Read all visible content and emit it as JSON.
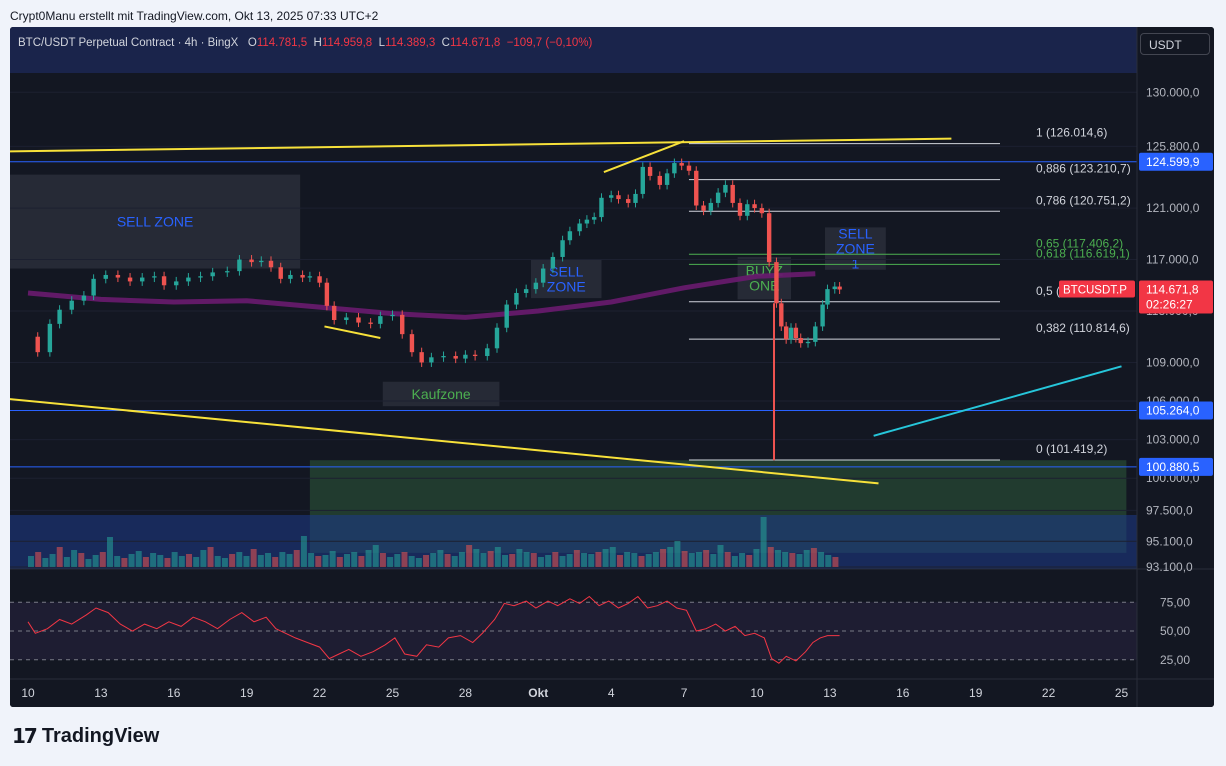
{
  "header": {
    "text": "Crypt0Manu erstellt mit TradingView.com, Okt 13, 2025 07:33 UTC+2"
  },
  "legend": {
    "symbol": "BTC/USDT Perpetual Contract · 4h · BingX",
    "o_label": "O",
    "o": "114.781,5",
    "h_label": "H",
    "h": "114.959,8",
    "l_label": "L",
    "l": "114.389,3",
    "c_label": "C",
    "c": "114.671,8",
    "change": "−109,7 (−0,10%)"
  },
  "currency_button": "USDT",
  "footer": {
    "brand": "TradingView",
    "mark": "17"
  },
  "colors": {
    "up": "#26a69a",
    "down": "#ef5350",
    "ma": "#6a1b6f",
    "fib": "#d1d4dc",
    "trend": "#f7e13a",
    "teal_line": "#26c6da",
    "hline": "#2962ff",
    "rsi": "#f23645"
  },
  "chart_data": {
    "type": "candlestick",
    "symbol": "BTCUSDT.P",
    "timeframe": "4h",
    "exchange": "BingX",
    "ylim": [
      93100,
      131500
    ],
    "y_ticks": [
      {
        "v": 130000,
        "label": "130.000,0"
      },
      {
        "v": 125800,
        "label": "125.800,0"
      },
      {
        "v": 121000,
        "label": "121.000,0"
      },
      {
        "v": 117000,
        "label": "117.000,0"
      },
      {
        "v": 113000,
        "label": "113.000,0"
      },
      {
        "v": 109000,
        "label": "109.000,0"
      },
      {
        "v": 106000,
        "label": "106.000,0"
      },
      {
        "v": 103000,
        "label": "103.000,0"
      },
      {
        "v": 100000,
        "label": "100.000,0"
      },
      {
        "v": 97500,
        "label": "97.500,0"
      },
      {
        "v": 95100,
        "label": "95.100,0"
      },
      {
        "v": 93100,
        "label": "93.100,0"
      }
    ],
    "x_ticks": [
      {
        "d": 0,
        "label": "10"
      },
      {
        "d": 3,
        "label": "13"
      },
      {
        "d": 6,
        "label": "16"
      },
      {
        "d": 9,
        "label": "19"
      },
      {
        "d": 12,
        "label": "22"
      },
      {
        "d": 15,
        "label": "25"
      },
      {
        "d": 18,
        "label": "28"
      },
      {
        "d": 21,
        "label": "Okt"
      },
      {
        "d": 24,
        "label": "4"
      },
      {
        "d": 27,
        "label": "7"
      },
      {
        "d": 30,
        "label": "10"
      },
      {
        "d": 33,
        "label": "13"
      },
      {
        "d": 36,
        "label": "16"
      },
      {
        "d": 39,
        "label": "19"
      },
      {
        "d": 42,
        "label": "22"
      },
      {
        "d": 45,
        "label": "25"
      }
    ],
    "close_points": [
      [
        0.0,
        111000
      ],
      [
        0.4,
        109800
      ],
      [
        0.9,
        112000
      ],
      [
        1.3,
        113100
      ],
      [
        1.8,
        113800
      ],
      [
        2.3,
        114200
      ],
      [
        2.7,
        115500
      ],
      [
        3.2,
        115800
      ],
      [
        3.7,
        115600
      ],
      [
        4.2,
        115300
      ],
      [
        4.7,
        115600
      ],
      [
        5.2,
        115700
      ],
      [
        5.6,
        115000
      ],
      [
        6.1,
        115300
      ],
      [
        6.6,
        115600
      ],
      [
        7.1,
        115700
      ],
      [
        7.6,
        116000
      ],
      [
        8.2,
        116100
      ],
      [
        8.7,
        117000
      ],
      [
        9.2,
        116800
      ],
      [
        9.6,
        116900
      ],
      [
        10.0,
        116400
      ],
      [
        10.4,
        115500
      ],
      [
        10.8,
        115800
      ],
      [
        11.3,
        115600
      ],
      [
        11.6,
        115700
      ],
      [
        12.0,
        115200
      ],
      [
        12.3,
        113400
      ],
      [
        12.6,
        112300
      ],
      [
        13.1,
        112500
      ],
      [
        13.6,
        112100
      ],
      [
        14.1,
        112000
      ],
      [
        14.5,
        112600
      ],
      [
        15.0,
        112700
      ],
      [
        15.4,
        111200
      ],
      [
        15.8,
        109800
      ],
      [
        16.2,
        109000
      ],
      [
        16.6,
        109400
      ],
      [
        17.1,
        109500
      ],
      [
        17.6,
        109300
      ],
      [
        18.0,
        109600
      ],
      [
        18.4,
        109500
      ],
      [
        18.9,
        110100
      ],
      [
        19.3,
        111700
      ],
      [
        19.7,
        113500
      ],
      [
        20.1,
        114400
      ],
      [
        20.5,
        114700
      ],
      [
        20.9,
        115200
      ],
      [
        21.2,
        116300
      ],
      [
        21.6,
        117200
      ],
      [
        22.0,
        118500
      ],
      [
        22.3,
        119200
      ],
      [
        22.7,
        119800
      ],
      [
        23.0,
        120100
      ],
      [
        23.3,
        120300
      ],
      [
        23.6,
        121800
      ],
      [
        24.0,
        122000
      ],
      [
        24.3,
        121700
      ],
      [
        24.7,
        121400
      ],
      [
        25.0,
        122100
      ],
      [
        25.3,
        124200
      ],
      [
        25.6,
        123500
      ],
      [
        26.0,
        122800
      ],
      [
        26.3,
        123700
      ],
      [
        26.6,
        124500
      ],
      [
        26.9,
        124300
      ],
      [
        27.2,
        123900
      ],
      [
        27.5,
        121200
      ],
      [
        27.8,
        120800
      ],
      [
        28.1,
        121400
      ],
      [
        28.4,
        122200
      ],
      [
        28.7,
        122800
      ],
      [
        29.0,
        121400
      ],
      [
        29.3,
        120400
      ],
      [
        29.6,
        121300
      ],
      [
        29.9,
        121000
      ],
      [
        30.2,
        120600
      ],
      [
        30.5,
        116800
      ],
      [
        30.8,
        113600
      ],
      [
        31.0,
        111800
      ],
      [
        31.2,
        110800
      ],
      [
        31.4,
        111700
      ],
      [
        31.6,
        110900
      ],
      [
        31.8,
        110500
      ],
      [
        32.1,
        110600
      ],
      [
        32.4,
        111800
      ],
      [
        32.7,
        113500
      ],
      [
        32.9,
        114700
      ],
      [
        33.2,
        114900
      ],
      [
        33.4,
        114672
      ]
    ],
    "wick": {
      "x": 30.7,
      "high": 113600,
      "low": 101400
    },
    "ma_points": [
      [
        0,
        114400
      ],
      [
        3,
        113900
      ],
      [
        6,
        113700
      ],
      [
        9,
        113800
      ],
      [
        12,
        113300
      ],
      [
        15,
        112800
      ],
      [
        18,
        112500
      ],
      [
        21,
        113000
      ],
      [
        24,
        113700
      ],
      [
        27,
        114800
      ],
      [
        30,
        115700
      ],
      [
        32.4,
        115900
      ]
    ],
    "fibonacci": {
      "x_start_day": 27.2,
      "x_end_day": 40.0,
      "levels": [
        {
          "ratio": "1",
          "price": 126014.6,
          "label": "1 (126.014,6)",
          "color": "#d1d4dc"
        },
        {
          "ratio": "0,886",
          "price": 123210.7,
          "label": "0,886 (123.210,7)",
          "color": "#d1d4dc"
        },
        {
          "ratio": "0,786",
          "price": 120751.2,
          "label": "0,786 (120.751,2)",
          "color": "#d1d4dc"
        },
        {
          "ratio": "0,65",
          "price": 117406.2,
          "label": "0,65 (117.406,2)",
          "color": "#4caf50"
        },
        {
          "ratio": "0,618",
          "price": 116619.1,
          "label": "0,618 (116.619,1)",
          "color": "#4caf50"
        },
        {
          "ratio": "0,5",
          "price": 113716.7,
          "label": "0,5 (113",
          "color": "#d1d4dc"
        },
        {
          "ratio": "0,382",
          "price": 110814.6,
          "label": "0,382 (110.814,6)",
          "color": "#d1d4dc"
        },
        {
          "ratio": "0",
          "price": 101419.2,
          "label": "0 (101.419,2)",
          "color": "#d1d4dc"
        }
      ]
    },
    "horizontal_lines": [
      {
        "price": 124599.9,
        "label": "124.599,9"
      },
      {
        "price": 105264.0,
        "label": "105.264,0"
      },
      {
        "price": 100880.5,
        "label": "100.880,5"
      }
    ],
    "price_tag": {
      "symbol": "BTCUSDT.P",
      "price": "114.671,8",
      "countdown": "02:26:27"
    },
    "zones": [
      {
        "label": "SELL ZONE",
        "color": "#2962ff",
        "x1": -1,
        "x2": 11.2,
        "y1": 123600,
        "y2": 116300
      },
      {
        "label": "SELL\nZONE",
        "color": "#2962ff",
        "x1": 20.7,
        "x2": 23.6,
        "y1": 117000,
        "y2": 114000
      },
      {
        "label": "SELL\nZONE\n1",
        "color": "#2962ff",
        "x1": 32.8,
        "x2": 35.3,
        "y1": 119500,
        "y2": 116200
      },
      {
        "label": "BUYZ\nONE",
        "color": "#4caf50",
        "x1": 29.2,
        "x2": 31.4,
        "y1": 117200,
        "y2": 113900
      },
      {
        "label": "Kaufzone",
        "color": "#4caf50",
        "x1": 14.6,
        "x2": 19.4,
        "y1": 107500,
        "y2": 105600
      }
    ],
    "demand_zone": {
      "x1": 11.6,
      "x2": 45.2,
      "y1": 101400,
      "y2": 94200
    },
    "trendlines": [
      {
        "color": "#f7e13a",
        "p1": [
          -1,
          125400
        ],
        "p2": [
          38.0,
          126400
        ]
      },
      {
        "color": "#f7e13a",
        "p1": [
          -1,
          106200
        ],
        "p2": [
          35.0,
          99600
        ]
      },
      {
        "color": "#f7e13a",
        "p1": [
          23.7,
          123800
        ],
        "p2": [
          27.0,
          126200
        ]
      },
      {
        "color": "#f7e13a",
        "p1": [
          12.2,
          111800
        ],
        "p2": [
          14.5,
          110900
        ]
      },
      {
        "color": "#26c6da",
        "p1": [
          34.8,
          103300
        ],
        "p2": [
          45.0,
          108700
        ]
      }
    ],
    "volume_max": 100,
    "volume": [
      22,
      30,
      18,
      26,
      40,
      20,
      34,
      28,
      16,
      24,
      30,
      60,
      22,
      18,
      26,
      32,
      20,
      28,
      24,
      18,
      30,
      22,
      26,
      20,
      34,
      40,
      22,
      18,
      26,
      30,
      22,
      36,
      24,
      28,
      20,
      30,
      26,
      34,
      62,
      28,
      22,
      24,
      32,
      20,
      26,
      30,
      22,
      34,
      44,
      28,
      20,
      26,
      30,
      22,
      18,
      24,
      28,
      34,
      26,
      22,
      30,
      44,
      36,
      28,
      32,
      40,
      24,
      26,
      36,
      30,
      28,
      20,
      24,
      30,
      22,
      26,
      34,
      28,
      26,
      30,
      36,
      40,
      24,
      30,
      28,
      22,
      26,
      30,
      36,
      40,
      52,
      32,
      28,
      30,
      34,
      26,
      44,
      30,
      22,
      28,
      24,
      36,
      100,
      40,
      34,
      30,
      28,
      26,
      34,
      38,
      30,
      24,
      20
    ],
    "rsi": {
      "levels": [
        {
          "v": 75,
          "label": "75,00"
        },
        {
          "v": 50,
          "label": "50,00"
        },
        {
          "v": 25,
          "label": "25,00"
        }
      ],
      "ylim": [
        10,
        90
      ],
      "points": [
        [
          0,
          58
        ],
        [
          0.3,
          48
        ],
        [
          0.8,
          52
        ],
        [
          1.3,
          60
        ],
        [
          1.8,
          56
        ],
        [
          2.4,
          64
        ],
        [
          2.8,
          70
        ],
        [
          3.3,
          66
        ],
        [
          3.8,
          56
        ],
        [
          4.3,
          50
        ],
        [
          4.8,
          56
        ],
        [
          5.3,
          52
        ],
        [
          5.8,
          58
        ],
        [
          6.3,
          54
        ],
        [
          6.8,
          62
        ],
        [
          7.3,
          58
        ],
        [
          7.8,
          52
        ],
        [
          8.3,
          60
        ],
        [
          8.8,
          66
        ],
        [
          9.3,
          58
        ],
        [
          9.8,
          62
        ],
        [
          10.2,
          52
        ],
        [
          10.6,
          48
        ],
        [
          11.0,
          44
        ],
        [
          11.5,
          40
        ],
        [
          12.0,
          36
        ],
        [
          12.4,
          26
        ],
        [
          12.8,
          30
        ],
        [
          13.2,
          34
        ],
        [
          13.7,
          28
        ],
        [
          14.2,
          32
        ],
        [
          14.7,
          38
        ],
        [
          15.1,
          44
        ],
        [
          15.5,
          30
        ],
        [
          16.0,
          28
        ],
        [
          16.4,
          38
        ],
        [
          16.9,
          36
        ],
        [
          17.3,
          44
        ],
        [
          17.8,
          46
        ],
        [
          18.3,
          40
        ],
        [
          18.7,
          48
        ],
        [
          19.2,
          60
        ],
        [
          19.6,
          74
        ],
        [
          20.0,
          72
        ],
        [
          20.5,
          76
        ],
        [
          20.9,
          70
        ],
        [
          21.4,
          76
        ],
        [
          21.8,
          72
        ],
        [
          22.3,
          78
        ],
        [
          22.7,
          74
        ],
        [
          23.1,
          80
        ],
        [
          23.5,
          72
        ],
        [
          23.9,
          76
        ],
        [
          24.3,
          70
        ],
        [
          24.7,
          74
        ],
        [
          25.1,
          80
        ],
        [
          25.5,
          70
        ],
        [
          25.9,
          72
        ],
        [
          26.3,
          76
        ],
        [
          26.7,
          70
        ],
        [
          27.1,
          68
        ],
        [
          27.5,
          50
        ],
        [
          27.9,
          52
        ],
        [
          28.3,
          56
        ],
        [
          28.7,
          50
        ],
        [
          29.1,
          54
        ],
        [
          29.5,
          46
        ],
        [
          29.9,
          48
        ],
        [
          30.3,
          44
        ],
        [
          30.6,
          26
        ],
        [
          30.9,
          22
        ],
        [
          31.2,
          28
        ],
        [
          31.6,
          24
        ],
        [
          32.0,
          32
        ],
        [
          32.3,
          40
        ],
        [
          32.6,
          44
        ],
        [
          32.9,
          46
        ],
        [
          33.4,
          46
        ]
      ]
    }
  }
}
